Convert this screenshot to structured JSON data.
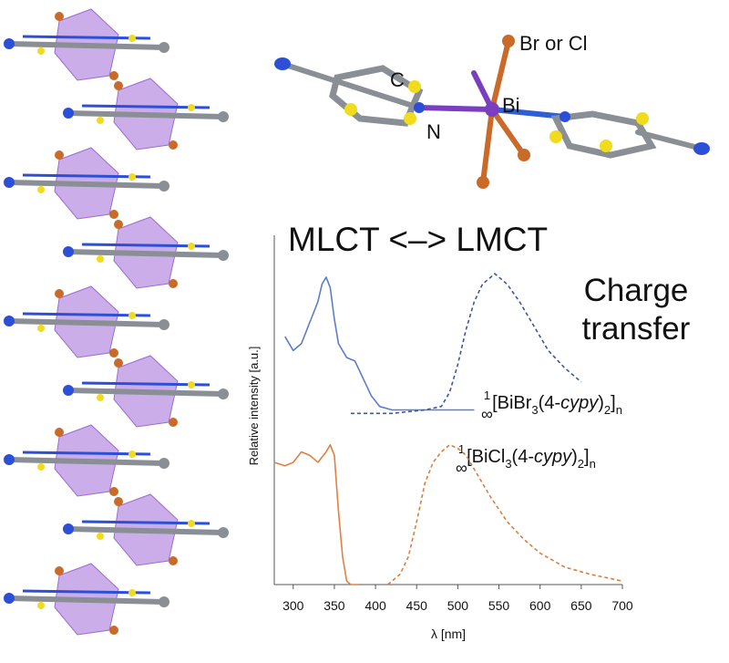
{
  "chart_data": {
    "type": "line",
    "title": "MLCT <–> LMCT",
    "annotations": [
      "Charge",
      "transfer"
    ],
    "molecule_labels": [
      "Br or Cl",
      "Bi",
      "C",
      "N"
    ],
    "compound_labels": [
      {
        "parts": [
          "∞",
          "1",
          "[BiBr",
          "3",
          "(4-",
          "cypy",
          ")",
          "2",
          "]",
          "n"
        ]
      },
      {
        "parts": [
          "∞",
          "1",
          "[BiCl",
          "3",
          "(4-",
          "cypy",
          ")",
          "2",
          "]",
          "n"
        ]
      }
    ],
    "x_label": "λ [nm]",
    "y_label": "Relative intensity [a.u.]",
    "xlim": [
      277,
      700
    ],
    "xticks": [
      300,
      350,
      400,
      450,
      500,
      550,
      600,
      650,
      700
    ],
    "ylim": [
      0,
      1
    ],
    "series": [
      {
        "color": "#5b7ec9",
        "dash": false,
        "x": [
          290,
          300,
          310,
          320,
          330,
          335,
          340,
          345,
          350,
          355,
          365,
          375,
          385,
          395,
          405,
          420,
          450,
          480,
          520
        ],
        "values": [
          0.71,
          0.67,
          0.69,
          0.75,
          0.81,
          0.86,
          0.88,
          0.85,
          0.76,
          0.69,
          0.65,
          0.64,
          0.59,
          0.54,
          0.51,
          0.5,
          0.5,
          0.5,
          0.5
        ]
      },
      {
        "color": "#3b5a9a",
        "dash": true,
        "x": [
          370,
          420,
          460,
          480,
          490,
          500,
          510,
          520,
          530,
          545,
          560,
          575,
          590,
          610,
          630,
          650
        ],
        "values": [
          0.49,
          0.49,
          0.5,
          0.51,
          0.55,
          0.63,
          0.73,
          0.81,
          0.86,
          0.89,
          0.86,
          0.81,
          0.75,
          0.67,
          0.62,
          0.58
        ]
      },
      {
        "color": "#e08040",
        "dash": false,
        "x": [
          277,
          290,
          300,
          310,
          320,
          330,
          340,
          345,
          350,
          355,
          360,
          365,
          370,
          380
        ],
        "values": [
          0.35,
          0.34,
          0.35,
          0.38,
          0.37,
          0.35,
          0.38,
          0.4,
          0.37,
          0.21,
          0.08,
          0.01,
          0,
          0
        ]
      },
      {
        "color": "#d9803f",
        "dash": true,
        "x": [
          415,
          430,
          440,
          450,
          460,
          470,
          480,
          490,
          500,
          510,
          525,
          540,
          560,
          580,
          600,
          630,
          660,
          700
        ],
        "values": [
          0,
          0.03,
          0.08,
          0.18,
          0.29,
          0.35,
          0.38,
          0.4,
          0.39,
          0.37,
          0.31,
          0.25,
          0.18,
          0.13,
          0.09,
          0.05,
          0.03,
          0.01
        ]
      }
    ]
  }
}
